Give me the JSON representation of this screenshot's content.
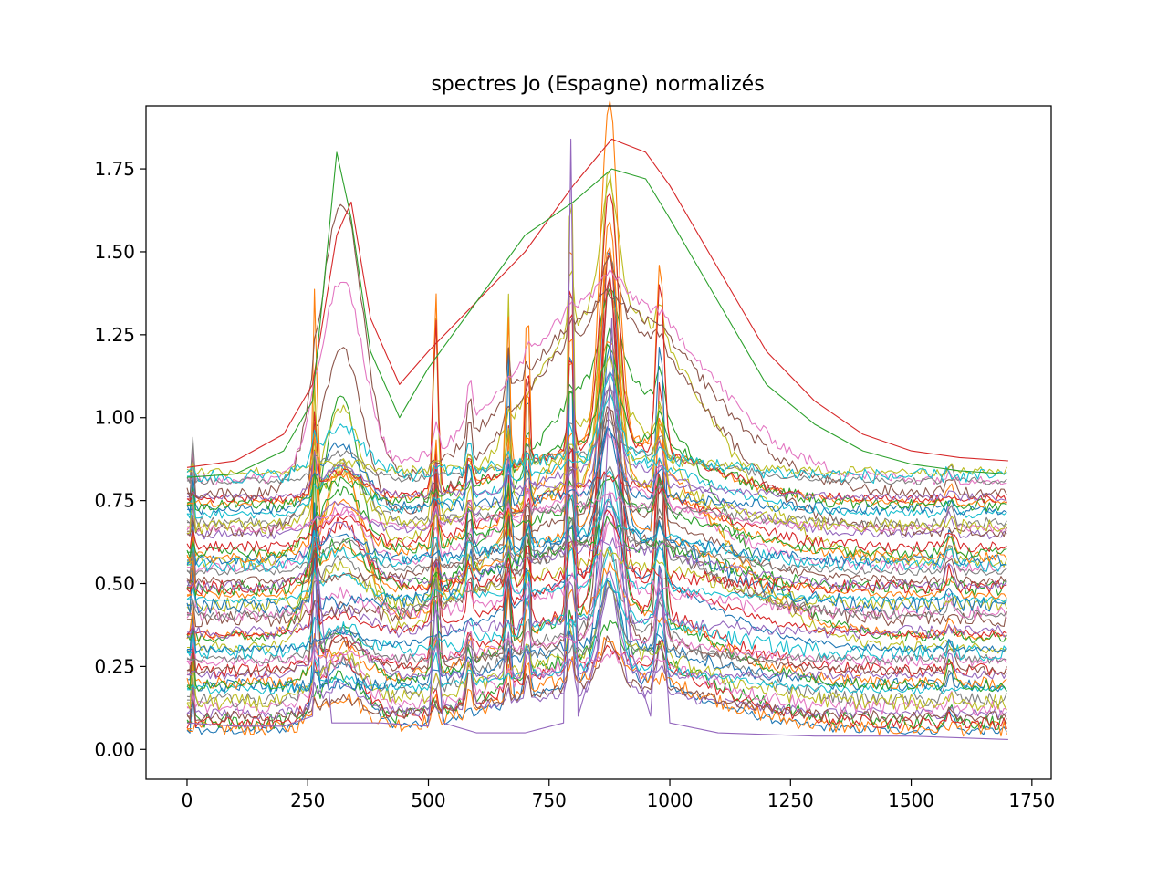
{
  "chart_data": {
    "type": "line",
    "title": "spectres Jo (Espagne) normalizés",
    "xlabel": "",
    "ylabel": "",
    "xlim": [
      -85,
      1790
    ],
    "ylim": [
      -0.09,
      1.94
    ],
    "xticks": [
      0,
      250,
      500,
      750,
      1000,
      1250,
      1500,
      1750
    ],
    "xtick_labels": [
      "0",
      "250",
      "500",
      "750",
      "1000",
      "1250",
      "1500",
      "1750"
    ],
    "yticks": [
      0.0,
      0.25,
      0.5,
      0.75,
      1.0,
      1.25,
      1.5,
      1.75
    ],
    "ytick_labels": [
      "0.00",
      "0.25",
      "0.50",
      "0.75",
      "1.00",
      "1.25",
      "1.50",
      "1.75"
    ],
    "grid": false,
    "legend": "none",
    "x_range": [
      0,
      1701
    ],
    "series_count": 60,
    "palette": [
      "#1f77b4",
      "#ff7f0e",
      "#2ca02c",
      "#d62728",
      "#9467bd",
      "#8c564b",
      "#e377c2",
      "#7f7f7f",
      "#bcbd22",
      "#17becf"
    ],
    "representative_series": [
      {
        "color": "#d62728",
        "x": [
          0,
          100,
          200,
          260,
          310,
          340,
          380,
          440,
          500,
          600,
          700,
          800,
          880,
          950,
          1000,
          1100,
          1200,
          1300,
          1400,
          1500,
          1600,
          1701
        ],
        "y": [
          0.85,
          0.87,
          0.95,
          1.1,
          1.55,
          1.65,
          1.3,
          1.1,
          1.2,
          1.35,
          1.5,
          1.7,
          1.84,
          1.8,
          1.7,
          1.45,
          1.2,
          1.05,
          0.95,
          0.9,
          0.88,
          0.87
        ]
      },
      {
        "color": "#9467bd",
        "x": [
          0,
          100,
          200,
          260,
          270,
          300,
          400,
          500,
          515,
          530,
          600,
          700,
          780,
          795,
          810,
          850,
          870,
          880,
          890,
          920,
          960,
          980,
          1000,
          1100,
          1300,
          1500,
          1701
        ],
        "y": [
          0.08,
          0.07,
          0.07,
          0.1,
          0.55,
          0.08,
          0.08,
          0.07,
          0.45,
          0.08,
          0.05,
          0.05,
          0.08,
          1.84,
          0.1,
          0.3,
          0.9,
          1.3,
          0.9,
          0.3,
          0.1,
          0.55,
          0.08,
          0.05,
          0.04,
          0.04,
          0.03
        ]
      },
      {
        "color": "#2ca02c",
        "x": [
          0,
          100,
          200,
          260,
          310,
          340,
          380,
          440,
          500,
          600,
          700,
          800,
          880,
          950,
          1000,
          1100,
          1200,
          1300,
          1400,
          1500,
          1600,
          1701
        ],
        "y": [
          0.82,
          0.83,
          0.9,
          1.05,
          1.8,
          1.6,
          1.2,
          1.0,
          1.15,
          1.35,
          1.55,
          1.65,
          1.75,
          1.72,
          1.6,
          1.35,
          1.1,
          0.98,
          0.9,
          0.86,
          0.84,
          0.83
        ]
      }
    ]
  }
}
